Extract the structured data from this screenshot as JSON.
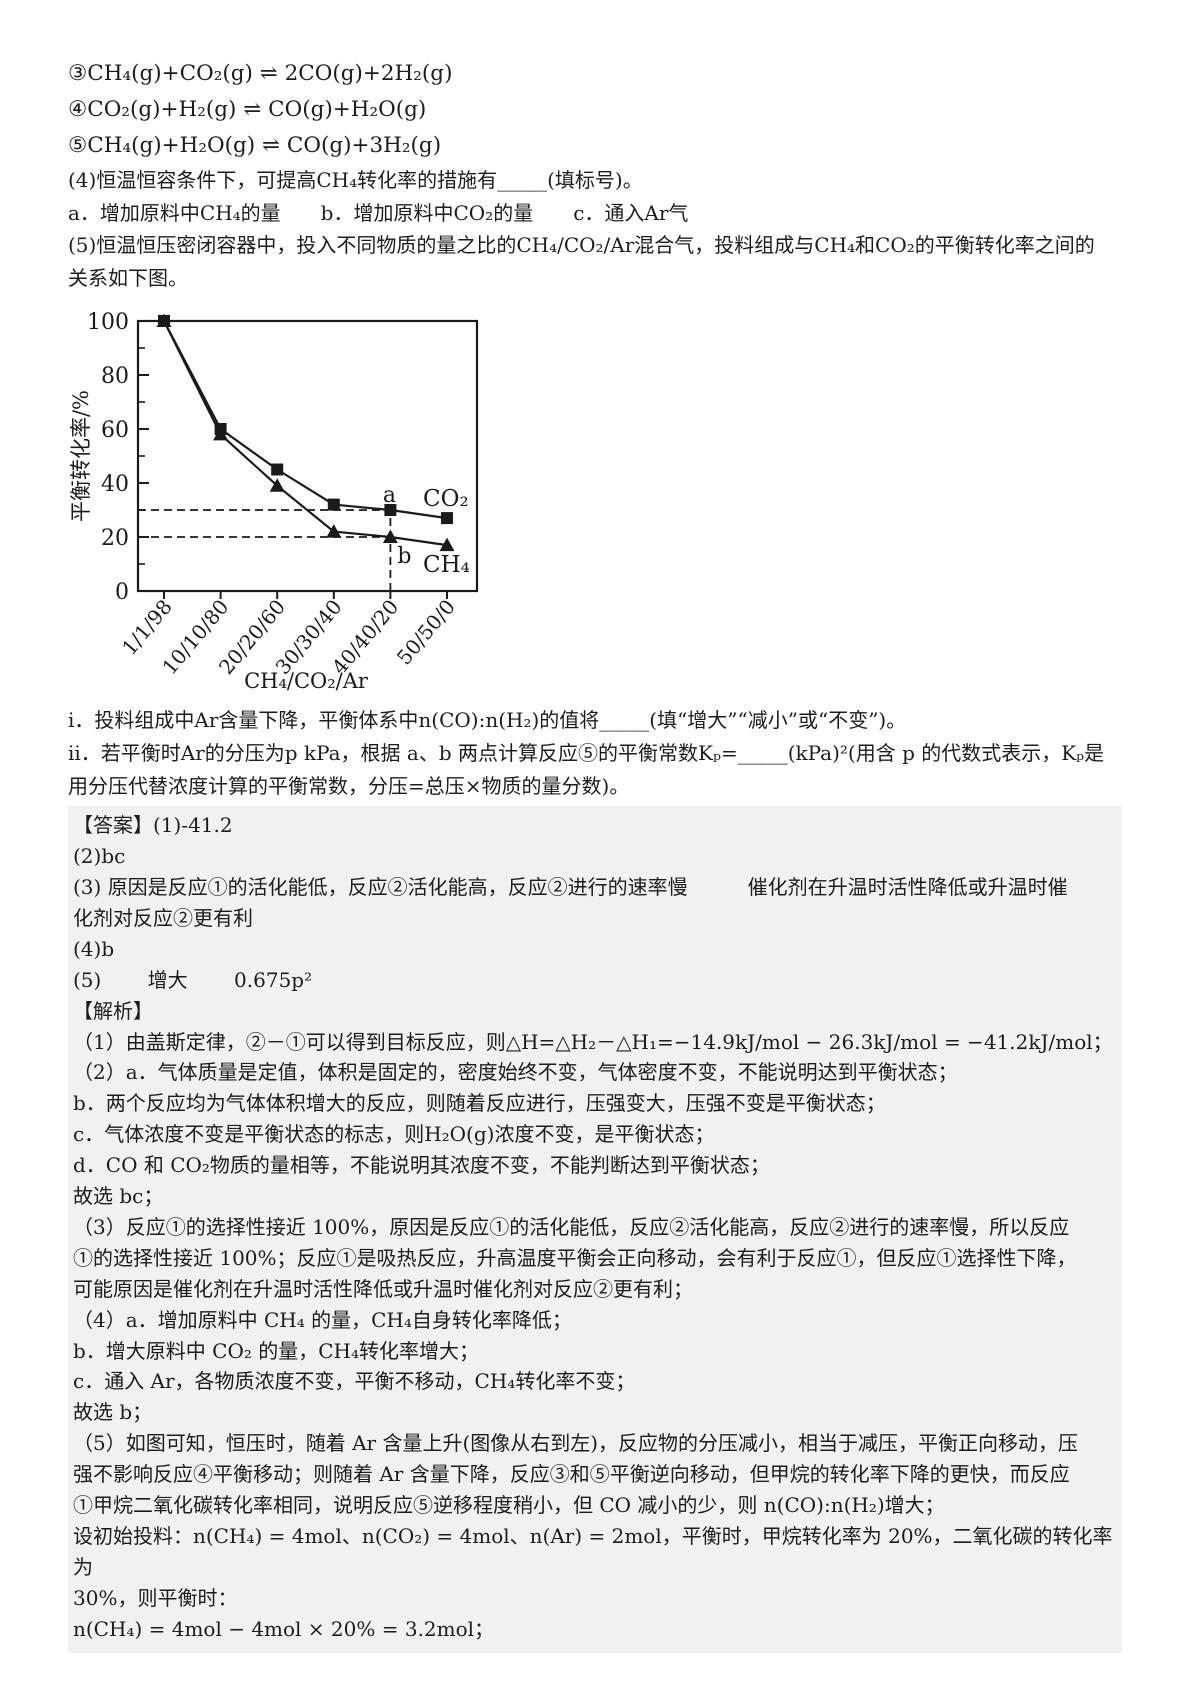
{
  "page": {
    "background": "#ffffff",
    "text_color": "#1c1c1c",
    "answer_background": "#f1f1ef",
    "chart_ink": "#1a1a1a"
  },
  "question": {
    "equations": [
      "③CH₄(g)+CO₂(g) ⇌ 2CO(g)+2H₂(g)",
      "④CO₂(g)+H₂(g) ⇌ CO(g)+H₂O(g)",
      "⑤CH₄(g)+H₂O(g) ⇌ CO(g)+3H₂(g)"
    ],
    "lines": [
      "(4)恒温恒容条件下，可提高CH₄转化率的措施有_____(填标号)。",
      "a．增加原料中CH₄的量　　b．增加原料中CO₂的量　　c．通入Ar气",
      "(5)恒温恒压密闭容器中，投入不同物质的量之比的CH₄/CO₂/Ar混合气，投料组成与CH₄和CO₂的平衡转化率之间的",
      "关系如下图。"
    ],
    "after_chart": [
      "i．投料组成中Ar含量下降，平衡体系中n(CO):n(H₂)的值将_____(填“增大”“减小”或“不变”)。",
      "ii．若平衡时Ar的分压为p kPa，根据 a、b 两点计算反应⑤的平衡常数Kₚ=_____(kPa)²(用含 p 的代数式表示，Kₚ是",
      "用分压代替浓度计算的平衡常数，分压=总压×物质的量分数)。"
    ]
  },
  "chart_data": {
    "type": "line",
    "title": "",
    "xlabel": "CH₄/CO₂/Ar",
    "ylabel": "平衡转化率/%",
    "categories": [
      "1/1/98",
      "10/10/80",
      "20/20/60",
      "30/30/40",
      "40/40/20",
      "50/50/0"
    ],
    "series": [
      {
        "name": "CO₂",
        "marker": "square",
        "values": [
          100,
          60,
          45,
          32,
          30,
          27
        ]
      },
      {
        "name": "CH₄",
        "marker": "triangle",
        "values": [
          100,
          58,
          39,
          22,
          20,
          17
        ]
      }
    ],
    "ylim": [
      0,
      100
    ],
    "yticks": [
      0,
      20,
      40,
      60,
      80,
      100
    ],
    "y_minor_ticks": [
      10,
      30,
      50,
      70,
      90
    ],
    "grid": false,
    "legend_position": "inline-right-of-lines",
    "annotations": [
      {
        "text": "a",
        "series": "CO₂",
        "category": "40/40/20",
        "value": 30
      },
      {
        "text": "b",
        "series": "CH₄",
        "category": "40/40/20",
        "value": 20
      }
    ],
    "dashed_guides": {
      "horizontal_values": [
        30,
        20
      ],
      "vertical_category": "40/40/20"
    },
    "line_color": "#1a1a1a",
    "marker_color": "#1a1a1a"
  },
  "answer": {
    "lines": [
      "【答案】(1)-41.2",
      "(2)bc",
      "(3) 原因是反应①的活化能低，反应②活化能高，反应②进行的速率慢　　　催化剂在升温时活性降低或升温时催",
      "化剂对反应②更有利",
      "(4)b",
      "(5)　　 增大　　 0.675p²",
      "【解析】",
      "（1）由盖斯定律，②－①可以得到目标反应，则△H=△H₂－△H₁=−14.9kJ/mol − 26.3kJ/mol = −41.2kJ/mol；",
      "（2）a．气体质量是定值，体积是固定的，密度始终不变，气体密度不变，不能说明达到平衡状态；",
      "b．两个反应均为气体体积增大的反应，则随着反应进行，压强变大，压强不变是平衡状态；",
      "c．气体浓度不变是平衡状态的标志，则H₂O(g)浓度不变，是平衡状态；",
      "d．CO 和 CO₂物质的量相等，不能说明其浓度不变，不能判断达到平衡状态；",
      "故选 bc；",
      "（3）反应①的选择性接近 100%，原因是反应①的活化能低，反应②活化能高，反应②进行的速率慢，所以反应",
      "①的选择性接近 100%；反应①是吸热反应，升高温度平衡会正向移动，会有利于反应①，但反应①选择性下降，",
      "可能原因是催化剂在升温时活性降低或升温时催化剂对反应②更有利；",
      "（4）a．增加原料中 CH₄ 的量，CH₄自身转化率降低；",
      "b．增大原料中 CO₂ 的量，CH₄转化率增大；",
      "c．通入 Ar，各物质浓度不变，平衡不移动，CH₄转化率不变；",
      "故选 b；",
      "（5）如图可知，恒压时，随着 Ar 含量上升(图像从右到左)，反应物的分压减小，相当于减压，平衡正向移动，压",
      "强不影响反应④平衡移动；则随着 Ar 含量下降，反应③和⑤平衡逆向移动，但甲烷的转化率下降的更快，而反应",
      "①甲烷二氧化碳转化率相同，说明反应⑤逆移程度稍小，但 CO 减小的少，则 n(CO):n(H₂)增大；",
      "设初始投料：n(CH₄) = 4mol、n(CO₂) = 4mol、n(Ar) = 2mol，平衡时，甲烷转化率为 20%，二氧化碳的转化率为",
      "30%，则平衡时：",
      "n(CH₄) = 4mol − 4mol × 20% = 3.2mol；"
    ]
  }
}
